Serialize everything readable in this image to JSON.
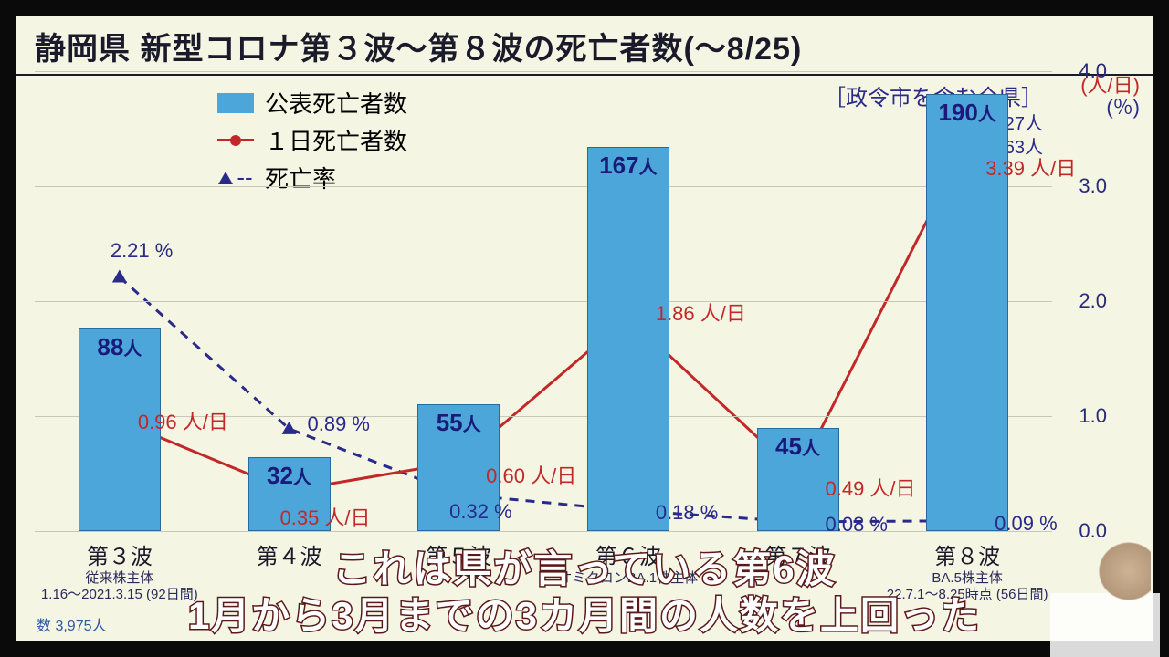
{
  "title": "静岡県 新型コロナ第３波～第８波の死亡者数(～8/25)",
  "legend": {
    "bar": "公表死亡者数",
    "line": "１日死亡者数",
    "dash": "死亡率"
  },
  "note": {
    "bracket": "［政令市を含む全県］",
    "july": "７月  27人",
    "aug": "８月 163人"
  },
  "right_axis": {
    "unit1": "(人/日)",
    "unit2": "(％)",
    "ticks": [
      "0.0",
      "1.0",
      "2.0",
      "3.0",
      "4.0"
    ],
    "max": 4.0
  },
  "categories": [
    {
      "label": "第３波",
      "variant": "従来株主体",
      "period": "1.16～2021.3.15",
      "days": "(92日間)"
    },
    {
      "label": "第４波",
      "variant": "",
      "period": "",
      "days": ""
    },
    {
      "label": "第５波",
      "variant": "",
      "period": "",
      "days": ""
    },
    {
      "label": "第６波",
      "variant": "オミクロンBA.1株主体",
      "period": "",
      "days": ""
    },
    {
      "label": "第７波",
      "variant": "",
      "period": "",
      "days": ""
    },
    {
      "label": "第８波",
      "variant": "BA.5株主体",
      "period": "22.7.1～8.25時点",
      "days": "(56日間)"
    }
  ],
  "bars": {
    "values": [
      88,
      32,
      55,
      167,
      45,
      190
    ],
    "unit": "人",
    "max_display": 200,
    "color": "#4da6d9"
  },
  "line_red": {
    "values": [
      0.96,
      0.35,
      0.6,
      1.86,
      0.49,
      3.39
    ],
    "unit": "人/日",
    "color": "#c22828"
  },
  "line_dash": {
    "values": [
      2.21,
      0.89,
      0.32,
      0.18,
      0.08,
      0.09
    ],
    "unit": "%",
    "color": "#2a2a8a"
  },
  "caption": {
    "line1": "これは県が言っている第6波",
    "line2": "1月から3月までの3カ月間の人数を上回った"
  },
  "bottom_extra": "数  3,975人",
  "styling": {
    "bg": "#f5f5e4",
    "grid": "#c8c8b8",
    "text": "#1a1a2a",
    "bar_border": "#2a6a9a"
  }
}
